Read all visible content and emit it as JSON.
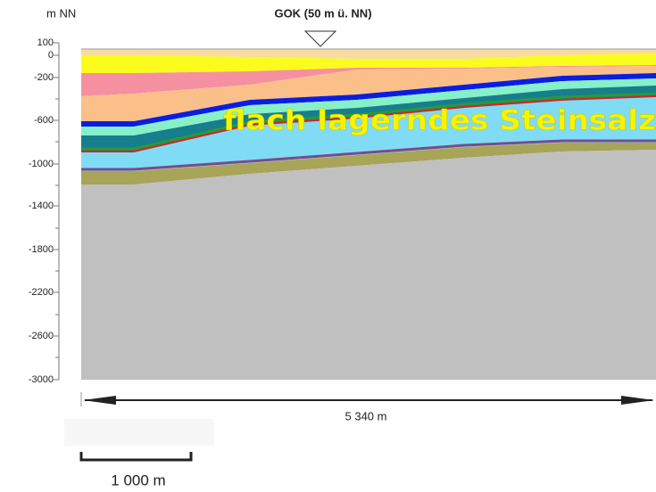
{
  "axis": {
    "unit": "m NN",
    "ticks": [
      "100",
      "0",
      "-200",
      "-600",
      "-1000",
      "-1400",
      "-1800",
      "-2200",
      "-2600",
      "-3000"
    ]
  },
  "surface_label": "GOK (50 m ü. NN)",
  "annotation": "flach lagerndes Steinsalz",
  "width_label": "5 340 m",
  "scale_label": "1 000 m"
}
